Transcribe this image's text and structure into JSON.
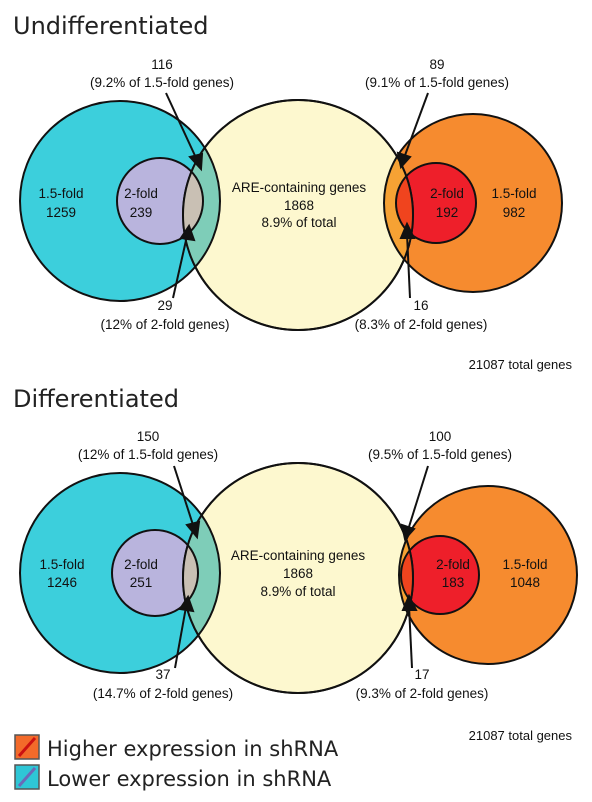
{
  "panels": [
    {
      "title": "Undifferentiated",
      "lower": {
        "outer_label": "1.5-fold",
        "outer_count": "1259",
        "inner_label": "2-fold",
        "inner_count": "239"
      },
      "are": {
        "label": "ARE-containing genes",
        "count": "1868",
        "pct": "8.9% of total"
      },
      "higher": {
        "inner_label": "2-fold",
        "inner_count": "192",
        "outer_label": "1.5-fold",
        "outer_count": "982"
      },
      "overlap_lower_15": {
        "count": "116",
        "note": "(9.2% of 1.5-fold genes)"
      },
      "overlap_lower_2": {
        "count": "29",
        "note": "(12% of 2-fold genes)"
      },
      "overlap_higher_15": {
        "count": "89",
        "note": "(9.1% of 1.5-fold genes)"
      },
      "overlap_higher_2": {
        "count": "16",
        "note": "(8.3% of 2-fold genes)"
      },
      "total": "21087 total genes"
    },
    {
      "title": "Differentiated",
      "lower": {
        "outer_label": "1.5-fold",
        "outer_count": "1246",
        "inner_label": "2-fold",
        "inner_count": "251"
      },
      "are": {
        "label": "ARE-containing genes",
        "count": "1868",
        "pct": "8.9% of total"
      },
      "higher": {
        "inner_label": "2-fold",
        "inner_count": "183",
        "outer_label": "1.5-fold",
        "outer_count": "1048"
      },
      "overlap_lower_15": {
        "count": "150",
        "note": "(12% of 1.5-fold genes)"
      },
      "overlap_lower_2": {
        "count": "37",
        "note": "(14.7% of 2-fold genes)"
      },
      "overlap_higher_15": {
        "count": "100",
        "note": "(9.5% of 1.5-fold genes)"
      },
      "overlap_higher_2": {
        "count": "17",
        "note": "(9.3% of 2-fold genes)"
      },
      "total": "21087 total genes"
    }
  ],
  "legend": [
    {
      "label": "Higher expression in shRNA",
      "color": "#f36a2a",
      "slash_color": "#cc1111"
    },
    {
      "label": "Lower expression in shRNA",
      "color": "#2ec6d6",
      "slash_color": "#6a6ab8"
    }
  ],
  "colors": {
    "lower_outer": "#3ccfdc",
    "lower_inner": "#b9b4dd",
    "lower_overlap": "#7ecdb8",
    "lower_inner_overlap": "#c9c0b4",
    "are": "#fdf8cf",
    "higher_outer": "#f68b2f",
    "higher_inner": "#ee1f2a",
    "higher_overlap": "#f6a234",
    "higher_inner_overlap": "#f0441e"
  }
}
